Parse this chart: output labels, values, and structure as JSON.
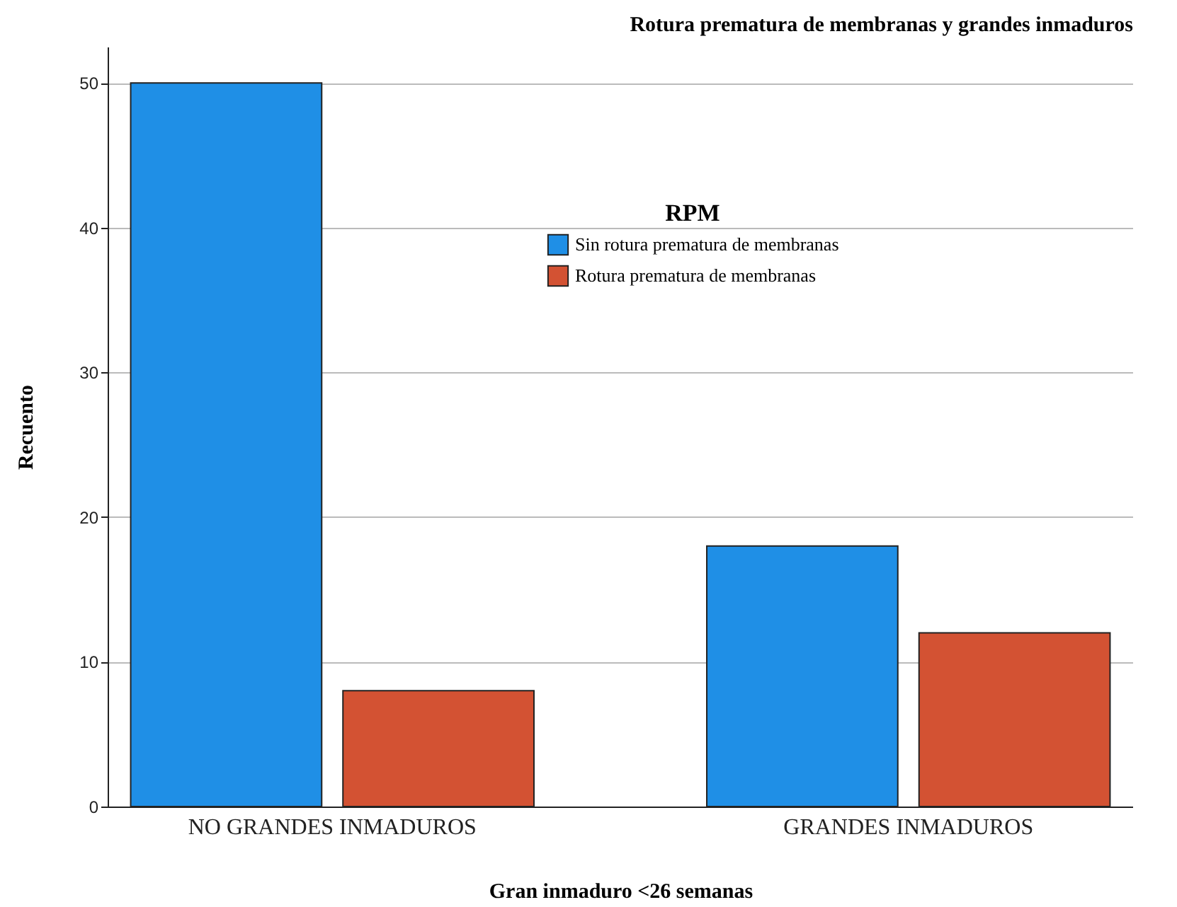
{
  "chart_data": {
    "type": "bar",
    "title": "Rotura prematura de membranas y grandes inmaduros",
    "xlabel": "Gran inmaduro <26 semanas",
    "ylabel": "Recuento",
    "legend_title": "RPM",
    "categories": [
      "NO GRANDES INMADUROS",
      "GRANDES INMADUROS"
    ],
    "series": [
      {
        "name": "Sin rotura prematura de membranas",
        "color": "#1f8fe6",
        "values": [
          50,
          18
        ]
      },
      {
        "name": "Rotura prematura de membranas",
        "color": "#d35233",
        "values": [
          8,
          12
        ]
      }
    ],
    "ylim": [
      0,
      52.5
    ],
    "yticks": [
      0,
      10,
      20,
      30,
      40,
      50
    ],
    "grid": "y",
    "legend": "top right"
  }
}
